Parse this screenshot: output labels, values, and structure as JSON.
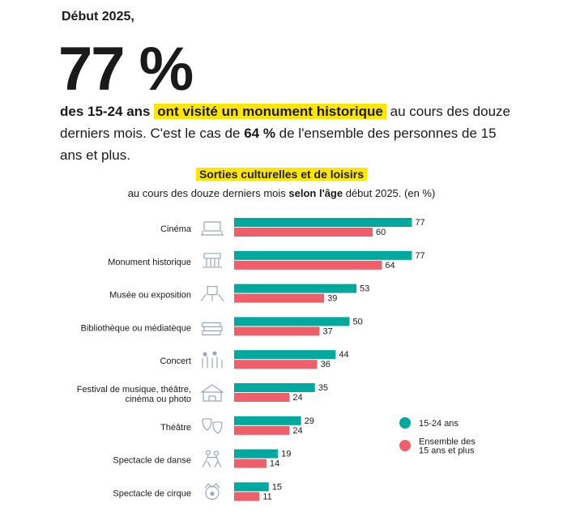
{
  "header": {
    "kicker": "Début 2025,",
    "big_number": "77 %",
    "lead_part1": "des 15-24 ans",
    "lead_highlight": "ont visité un monument historique",
    "lead_part2": "au cours des douze derniers mois. C'est le cas de",
    "lead_bold": "64 %",
    "lead_part3": "de l'ensemble des personnes de 15 ans et plus."
  },
  "colors": {
    "series1": "#00a99d",
    "series2": "#ee5f6a",
    "highlight": "#ffe600",
    "icon": "#9aa7b8"
  },
  "chart_data": {
    "type": "bar",
    "orientation": "horizontal",
    "title": "Sorties culturelles et de loisirs",
    "subtitle_part1": "au cours des douze derniers mois",
    "subtitle_bold": "selon l'âge",
    "subtitle_part2": "début 2025. (en %)",
    "categories": [
      "Cinéma",
      "Monument historique",
      "Musée ou exposition",
      "Bibliothèque ou médiatèque",
      "Concert",
      "Festival de musique, théâtre, cinéma ou photo",
      "Théâtre",
      "Spectacle de danse",
      "Spectacle de cirque"
    ],
    "category_lines": [
      [
        "Cinéma"
      ],
      [
        "Monument historique"
      ],
      [
        "Musée ou exposition"
      ],
      [
        "Bibliothèque ou médiatèque"
      ],
      [
        "Concert"
      ],
      [
        "Festival de musique, théâtre,",
        "cinéma ou photo"
      ],
      [
        "Théâtre"
      ],
      [
        "Spectacle de danse"
      ],
      [
        "Spectacle de cirque"
      ]
    ],
    "icons": [
      "cinema-icon",
      "monument-icon",
      "museum-icon",
      "library-icon",
      "concert-icon",
      "festival-icon",
      "theatre-icon",
      "dance-icon",
      "circus-icon"
    ],
    "series": [
      {
        "name": "15-24 ans",
        "values": [
          77,
          77,
          53,
          50,
          44,
          35,
          29,
          19,
          15
        ]
      },
      {
        "name": "Ensemble des 15 ans et plus",
        "values": [
          60,
          64,
          39,
          37,
          36,
          24,
          24,
          14,
          11
        ]
      }
    ],
    "legend": {
      "position": "right",
      "labels": [
        [
          "15-24 ans"
        ],
        [
          "Ensemble des",
          "15 ans et plus"
        ]
      ]
    },
    "xlim": [
      0,
      100
    ],
    "grid": false
  }
}
